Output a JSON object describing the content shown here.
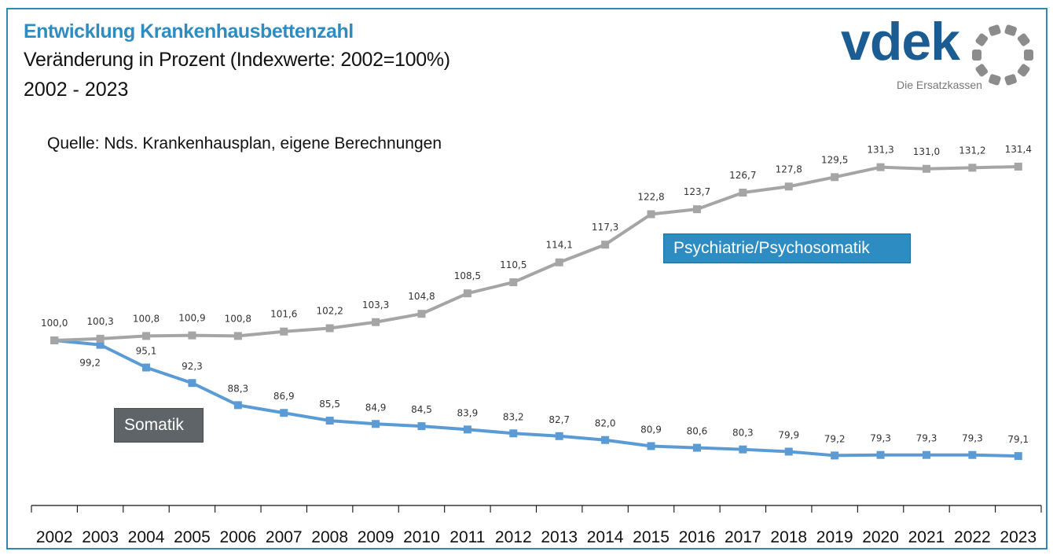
{
  "header": {
    "title": "Entwicklung Krankenhausbettenzahl",
    "subtitle": "Veränderung in Prozent (Indexwerte: 2002=100%)",
    "period": "2002 - 2023",
    "source": "Quelle: Nds. Krankenhausplan, eigene Berechnungen"
  },
  "logo": {
    "name": "vdek",
    "tagline": "Die Ersatzkassen",
    "brand_color": "#1b5d93",
    "ring_color": "#8c8c8c"
  },
  "colors": {
    "frame": "#2f88b6",
    "title": "#2f8cc0",
    "psychiatrie_line": "#a5a5a5",
    "somatik_line": "#5b9bd5",
    "psychiatrie_box": "#2d8cc2",
    "somatik_box": "#5f6468"
  },
  "chart_data": {
    "type": "line",
    "title": "Entwicklung Krankenhausbettenzahl",
    "subtitle": "Veränderung in Prozent (Indexwerte: 2002=100%)",
    "xlabel": "",
    "ylabel": "",
    "grid": false,
    "categories": [
      "2002",
      "2003",
      "2004",
      "2005",
      "2006",
      "2007",
      "2008",
      "2009",
      "2010",
      "2011",
      "2012",
      "2013",
      "2014",
      "2015",
      "2016",
      "2017",
      "2018",
      "2019",
      "2020",
      "2021",
      "2022",
      "2023"
    ],
    "series": [
      {
        "name": "Psychiatrie/Psychosomatik",
        "values": [
          100.0,
          100.3,
          100.8,
          100.9,
          100.8,
          101.6,
          102.2,
          103.3,
          104.8,
          108.5,
          110.5,
          114.1,
          117.3,
          122.8,
          123.7,
          126.7,
          127.8,
          129.5,
          131.3,
          131.0,
          131.2,
          131.4
        ],
        "labels": [
          "100,0",
          "100,3",
          "100,8",
          "100,9",
          "100,8",
          "101,6",
          "102,2",
          "103,3",
          "104,8",
          "108,5",
          "110,5",
          "114,1",
          "117,3",
          "122,8",
          "123,7",
          "126,7",
          "127,8",
          "129,5",
          "131,3",
          "131,0",
          "131,2",
          "131,4"
        ]
      },
      {
        "name": "Somatik",
        "values": [
          100.0,
          99.2,
          95.1,
          92.3,
          88.3,
          86.9,
          85.5,
          84.9,
          84.5,
          83.9,
          83.2,
          82.7,
          82.0,
          80.9,
          80.6,
          80.3,
          79.9,
          79.2,
          79.3,
          79.3,
          79.3,
          79.1
        ],
        "labels": [
          "100,0",
          "99,2",
          "95,1",
          "92,3",
          "88,3",
          "86,9",
          "85,5",
          "84,9",
          "84,5",
          "83,9",
          "83,2",
          "82,7",
          "82,0",
          "80,9",
          "80,6",
          "80,3",
          "79,9",
          "79,2",
          "79,3",
          "79,3",
          "79,3",
          "79,1"
        ]
      }
    ],
    "legend": "inline-labels"
  }
}
